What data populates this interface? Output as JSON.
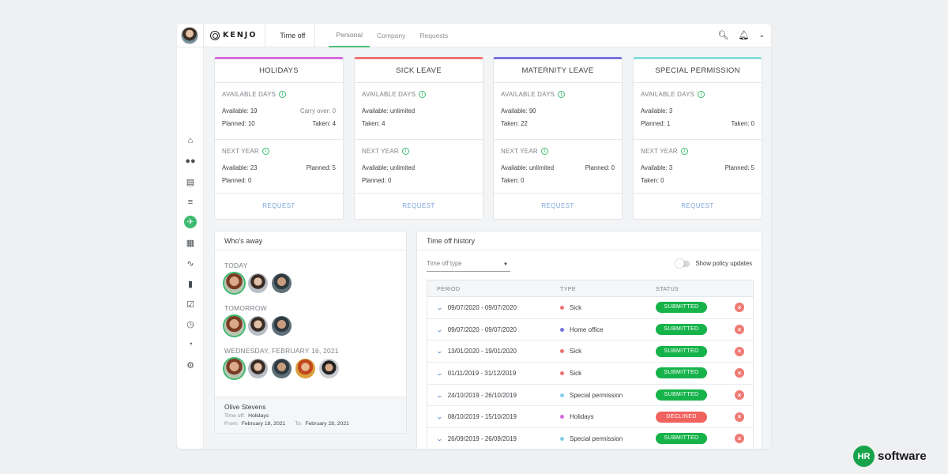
{
  "topbar": {
    "logo": "KENJO",
    "section": "Time off",
    "tabs": [
      "Personal",
      "Company",
      "Requests"
    ],
    "active_tab": "Personal"
  },
  "sidebar": {
    "icons": [
      "home-icon",
      "people-icon",
      "briefcase-icon",
      "document-list-icon",
      "plane-icon",
      "calendar-icon",
      "pulse-icon",
      "bar-chart-icon",
      "checklist-icon",
      "clock-icon",
      "dashboard-icon",
      "settings-icon"
    ],
    "active": "plane-icon"
  },
  "policies": [
    {
      "name": "HOLIDAYS",
      "accent": "#d86bde",
      "current_label": "AVAILABLE DAYS",
      "current": [
        [
          "Available: 19",
          "Carry over: 0"
        ],
        [
          "Planned: 10",
          "Taken: 4"
        ]
      ],
      "next_label": "NEXT YEAR",
      "next": [
        [
          "Available: 23",
          "Planned: 5"
        ],
        [
          "Planned: 0",
          ""
        ]
      ],
      "action": "REQUEST"
    },
    {
      "name": "SICK LEAVE",
      "accent": "#ea7371",
      "current_label": "AVAILABLE DAYS",
      "current": [
        [
          "Available: unlimited",
          ""
        ],
        [
          "Taken: 4",
          ""
        ]
      ],
      "next_label": "NEXT YEAR",
      "next": [
        [
          "Available: unlimited",
          ""
        ],
        [
          "Planned: 0",
          ""
        ]
      ],
      "action": "REQUEST"
    },
    {
      "name": "MATERNITY LEAVE",
      "accent": "#7a74de",
      "current_label": "AVAILABLE DAYS",
      "current": [
        [
          "Available: 90",
          ""
        ],
        [
          "Taken: 22",
          ""
        ]
      ],
      "next_label": "NEXT YEAR",
      "next": [
        [
          "Available: unlimited",
          "Planned: 0"
        ],
        [
          "Taken: 0",
          ""
        ]
      ],
      "action": "REQUEST"
    },
    {
      "name": "SPECIAL PERMISSION",
      "accent": "#84dfdc",
      "current_label": "AVAILABLE DAYS",
      "current": [
        [
          "Available: 3",
          ""
        ],
        [
          "Planned: 1",
          "Taken: 0"
        ]
      ],
      "next_label": "NEXT YEAR",
      "next": [
        [
          "Available: 3",
          "Planned: 5"
        ],
        [
          "Taken: 0",
          ""
        ]
      ],
      "action": "REQUEST"
    }
  ],
  "whos_away": {
    "title": "Who's away",
    "groups": [
      {
        "label": "TODAY",
        "avatars": 3
      },
      {
        "label": "TOMORROW",
        "avatars": 3
      },
      {
        "label": "WEDNESDAY, FEBRUARY 16, 2021",
        "avatars": 5
      }
    ],
    "selected": {
      "name": "Olive Stevens",
      "time_off_label": "Time off:",
      "time_off": "Holidays",
      "from_label": "From:",
      "from": "February 18, 2021",
      "to_label": "To:",
      "to": "February 28, 2021"
    }
  },
  "history": {
    "title": "Time off history",
    "filter_placeholder": "Time off type",
    "toggle_label": "Show policy updates",
    "columns": [
      "PERIOD",
      "TYPE",
      "STATUS"
    ],
    "rows": [
      {
        "period": "09/07/2020 - 09/07/2020",
        "type": "Sick",
        "type_color": "#ea7371",
        "status": "SUBMITTED"
      },
      {
        "period": "09/07/2020 - 09/07/2020",
        "type": "Home office",
        "type_color": "#7a74de",
        "status": "SUBMITTED"
      },
      {
        "period": "13/01/2020 - 19/01/2020",
        "type": "Sick",
        "type_color": "#ea7371",
        "status": "SUBMITTED"
      },
      {
        "period": "01/11/2019 - 31/12/2019",
        "type": "Sick",
        "type_color": "#ea7371",
        "status": "SUBMITTED"
      },
      {
        "period": "24/10/2019 - 26/10/2019",
        "type": "Special permission",
        "type_color": "#84d0ea",
        "status": "SUBMITTED"
      },
      {
        "period": "08/10/2019 - 15/10/2019",
        "type": "Holidays",
        "type_color": "#d86bde",
        "status": "DECLINED"
      },
      {
        "period": "26/09/2019 - 26/09/2019",
        "type": "Special permission",
        "type_color": "#84d0ea",
        "status": "SUBMITTED"
      }
    ],
    "status_colors": {
      "SUBMITTED": "#16b34a",
      "DECLINED": "#f0625d"
    }
  },
  "brand": {
    "mark": "HR",
    "text": "software"
  }
}
